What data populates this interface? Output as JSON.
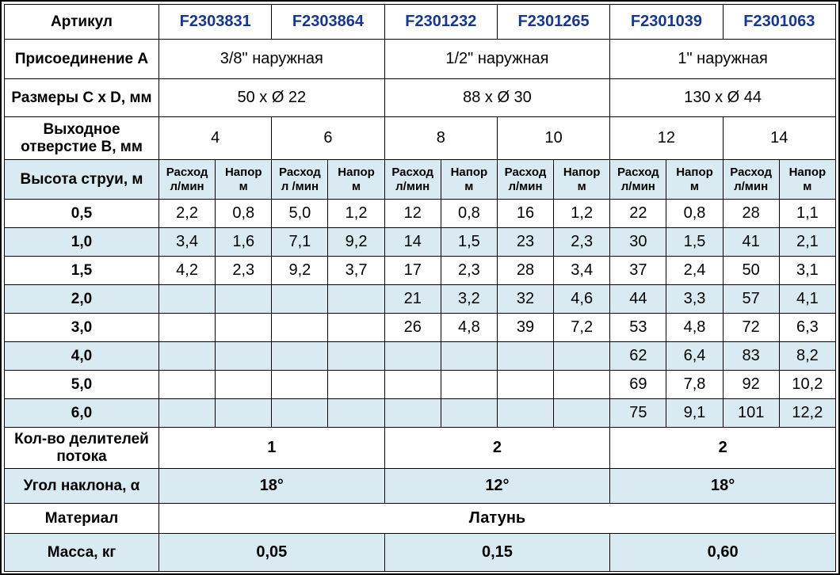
{
  "colors": {
    "band_blue": "#d9eaf2",
    "article_blue": "#17368f",
    "border": "#000000",
    "text": "#000000"
  },
  "table": {
    "article": {
      "label": "Артикул",
      "values": [
        "F2303831",
        "F2303864",
        "F2301232",
        "F2301265",
        "F2301039",
        "F2301063"
      ]
    },
    "connection": {
      "label": "Присоединение А",
      "values": [
        "3/8\" наружная",
        "1/2\" наружная",
        "1\" наружная"
      ]
    },
    "dimensions": {
      "label": "Размеры С x D, мм",
      "values": [
        "50 x Ø 22",
        "88 x Ø 30",
        "130 x Ø 44"
      ]
    },
    "outlet": {
      "label_line1": "Выходное",
      "label_line2": "отверстие В, мм",
      "values": [
        "4",
        "6",
        "8",
        "10",
        "12",
        "14"
      ]
    },
    "jet_header": {
      "label": "Высота струи, м",
      "cols": [
        {
          "l1": "Расход",
          "l2": "л/мин"
        },
        {
          "l1": "Напор",
          "l2": "м"
        },
        {
          "l1": "Расход",
          "l2": "л /мин"
        },
        {
          "l1": "Напор",
          "l2": "м"
        },
        {
          "l1": "Расход",
          "l2": "л/мин"
        },
        {
          "l1": "Напор",
          "l2": "м"
        },
        {
          "l1": "Расход",
          "l2": "л/мин"
        },
        {
          "l1": "Напор",
          "l2": "м"
        },
        {
          "l1": "Расход",
          "l2": "л/мин"
        },
        {
          "l1": "Напор",
          "l2": "м"
        },
        {
          "l1": "Расход",
          "l2": "л/мин"
        },
        {
          "l1": "Напор",
          "l2": "м"
        }
      ]
    },
    "jet_rows": [
      {
        "h": "0,5",
        "v": [
          "2,2",
          "0,8",
          "5,0",
          "1,2",
          "12",
          "0,8",
          "16",
          "1,2",
          "22",
          "0,8",
          "28",
          "1,1"
        ]
      },
      {
        "h": "1,0",
        "v": [
          "3,4",
          "1,6",
          "7,1",
          "9,2",
          "14",
          "1,5",
          "23",
          "2,3",
          "30",
          "1,5",
          "41",
          "2,1"
        ]
      },
      {
        "h": "1,5",
        "v": [
          "4,2",
          "2,3",
          "9,2",
          "3,7",
          "17",
          "2,3",
          "28",
          "3,4",
          "37",
          "2,4",
          "50",
          "3,1"
        ]
      },
      {
        "h": "2,0",
        "v": [
          "",
          "",
          "",
          "",
          "21",
          "3,2",
          "32",
          "4,6",
          "44",
          "3,3",
          "57",
          "4,1"
        ]
      },
      {
        "h": "3,0",
        "v": [
          "",
          "",
          "",
          "",
          "26",
          "4,8",
          "39",
          "7,2",
          "53",
          "4,8",
          "72",
          "6,3"
        ]
      },
      {
        "h": "4,0",
        "v": [
          "",
          "",
          "",
          "",
          "",
          "",
          "",
          "",
          "62",
          "6,4",
          "83",
          "8,2"
        ]
      },
      {
        "h": "5,0",
        "v": [
          "",
          "",
          "",
          "",
          "",
          "",
          "",
          "",
          "69",
          "7,8",
          "92",
          "10,2"
        ]
      },
      {
        "h": "6,0",
        "v": [
          "",
          "",
          "",
          "",
          "",
          "",
          "",
          "",
          "75",
          "9,1",
          "101",
          "12,2"
        ]
      }
    ],
    "dividers": {
      "label_line1": "Кол-во делителей",
      "label_line2": "потока",
      "values": [
        "1",
        "2",
        "2"
      ]
    },
    "angle": {
      "label": "Угол наклона, α",
      "values": [
        "18°",
        "12°",
        "18°"
      ]
    },
    "material": {
      "label": "Материал",
      "value": "Латунь"
    },
    "mass": {
      "label": "Масса, кг",
      "values": [
        "0,05",
        "0,15",
        "0,60"
      ]
    }
  }
}
